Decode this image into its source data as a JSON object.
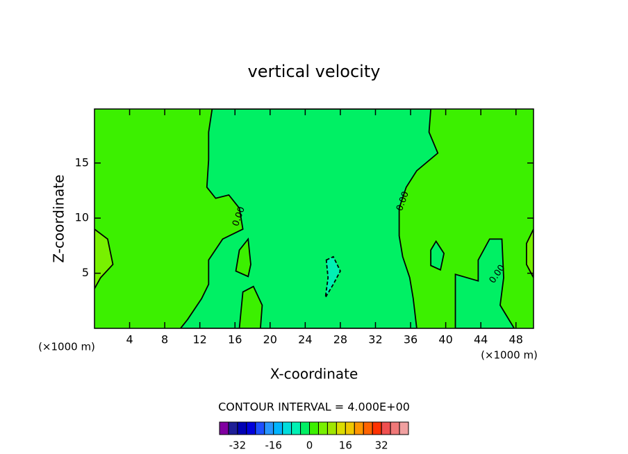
{
  "chart_data": {
    "type": "contour",
    "title": "vertical velocity",
    "x_label": "X-coordinate",
    "y_label": "Z-coordinate",
    "x_unit": "(×1000 m)",
    "y_unit": "(×1000 m)",
    "xlim": [
      0,
      50
    ],
    "ylim": [
      0,
      19.9
    ],
    "xticks": [
      4,
      8,
      12,
      16,
      20,
      24,
      28,
      32,
      36,
      40,
      44,
      48
    ],
    "yticks": [
      5,
      10,
      15
    ],
    "background_level": 0,
    "regions": [
      {
        "level": -4,
        "x": [
          13.4,
          13.0,
          13.0,
          12.8,
          13.8,
          15.3,
          16.5,
          16.9,
          14.6,
          13.0,
          13.0,
          12.2,
          10.6,
          9.8,
          36.7,
          36.3,
          35.9,
          35.1,
          34.7,
          34.7,
          35.5,
          36.7,
          39.1,
          38.1,
          38.3
        ],
        "y": [
          19.9,
          17.8,
          15.3,
          12.8,
          11.8,
          12.1,
          10.9,
          9.0,
          8.1,
          6.2,
          4.0,
          2.7,
          0.8,
          0,
          0,
          2.7,
          4.6,
          6.5,
          8.4,
          10.9,
          12.8,
          14.3,
          15.9,
          17.8,
          19.9
        ]
      },
      {
        "level": -4,
        "x": [
          41.1,
          41.1,
          43.7,
          43.7,
          45.0,
          46.4,
          46.6,
          46.2,
          47.8
        ],
        "y": [
          0,
          4.9,
          4.3,
          6.2,
          8.1,
          8.1,
          4.6,
          2.1,
          0
        ]
      },
      {
        "level": -4,
        "x": [
          38.3,
          38.9,
          39.8,
          39.4,
          38.3
        ],
        "y": [
          7.1,
          7.9,
          6.8,
          5.3,
          5.7
        ]
      },
      {
        "level": 0,
        "x": [
          16.5,
          17.5,
          17.8,
          17.5,
          16.1
        ],
        "y": [
          7.1,
          8.1,
          5.8,
          4.7,
          5.2
        ]
      },
      {
        "level": 0,
        "x": [
          16.5,
          16.9,
          18.1,
          19.1,
          18.9
        ],
        "y": [
          0,
          3.3,
          3.8,
          2.1,
          0
        ]
      },
      {
        "level": 4,
        "x": [
          0,
          1.5,
          2.1,
          0.7,
          0
        ],
        "y": [
          9.0,
          8.1,
          5.8,
          4.6,
          3.6
        ]
      },
      {
        "level": 4,
        "x": [
          50,
          49.2,
          49.2,
          50
        ],
        "y": [
          9.0,
          7.7,
          5.8,
          4.6
        ]
      },
      {
        "level": -8,
        "x": [
          26.4,
          27.2,
          28.0,
          27.2,
          26.3,
          26.6
        ],
        "y": [
          6.2,
          6.5,
          5.2,
          4.0,
          2.8,
          4.6
        ]
      }
    ],
    "contour_labels": [
      "0.00",
      "0.00",
      "0.00"
    ],
    "contour_interval_label": "CONTOUR INTERVAL = 4.000E+00",
    "colorbar": {
      "levels": [
        -40,
        -36,
        -32,
        -28,
        -24,
        -20,
        -16,
        -12,
        -8,
        -4,
        0,
        4,
        8,
        12,
        16,
        20,
        24,
        28,
        32,
        36,
        40
      ],
      "top": 44,
      "colors": [
        "#8000a0",
        "#1e1e96",
        "#0000b4",
        "#0000dc",
        "#1e50ff",
        "#2896ff",
        "#00b4ff",
        "#00dcdc",
        "#00f0b4",
        "#00f064",
        "#3cf000",
        "#78f000",
        "#a0e600",
        "#dcdc00",
        "#f0c800",
        "#ff9600",
        "#ff6400",
        "#ff3200",
        "#f05050",
        "#f07878",
        "#f0a0a0"
      ],
      "ticks": [
        -32,
        -16,
        0,
        16,
        32
      ]
    }
  }
}
